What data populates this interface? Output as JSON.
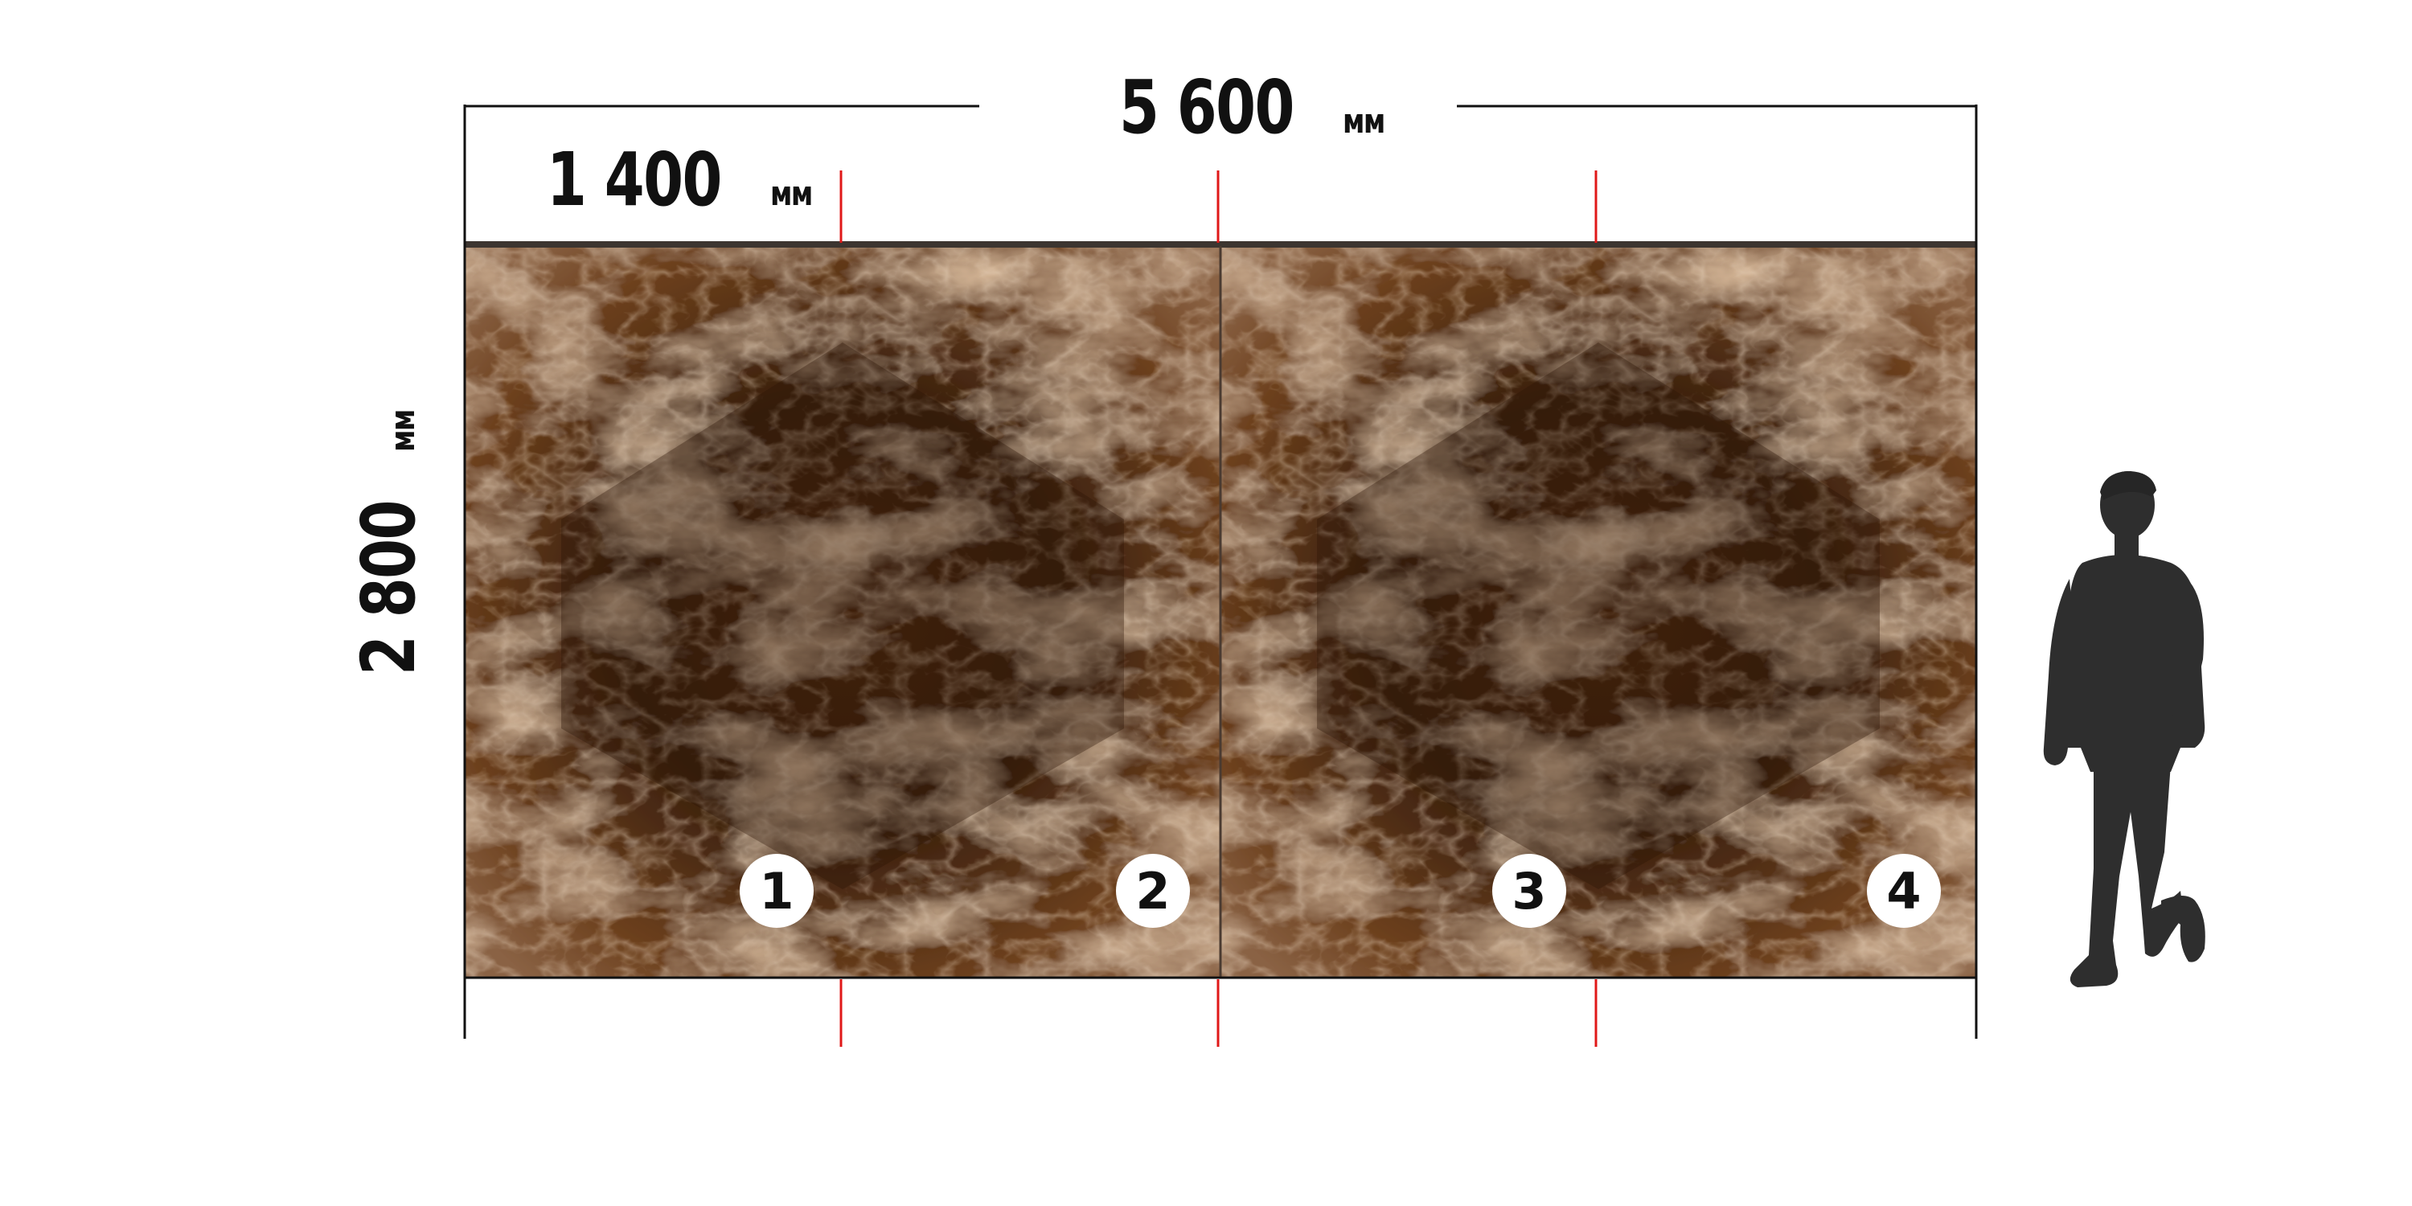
{
  "dimensions": {
    "total_width": {
      "value": "5 600",
      "unit": "мм"
    },
    "slab_width": {
      "value": "1 400",
      "unit": "мм"
    },
    "slab_height": {
      "value": "2 800",
      "unit": "мм"
    }
  },
  "slabs": [
    {
      "number": "1"
    },
    {
      "number": "2"
    },
    {
      "number": "3"
    },
    {
      "number": "4"
    }
  ],
  "colors": {
    "marble_base": "#3a200e",
    "marble_mid": "#6b3f1c",
    "marble_light": "#b08a66",
    "marker_line": "#e01818",
    "dimension_line": "#111111",
    "silhouette": "#2e2e2e"
  },
  "icons": {
    "person": "person-silhouette-icon"
  }
}
